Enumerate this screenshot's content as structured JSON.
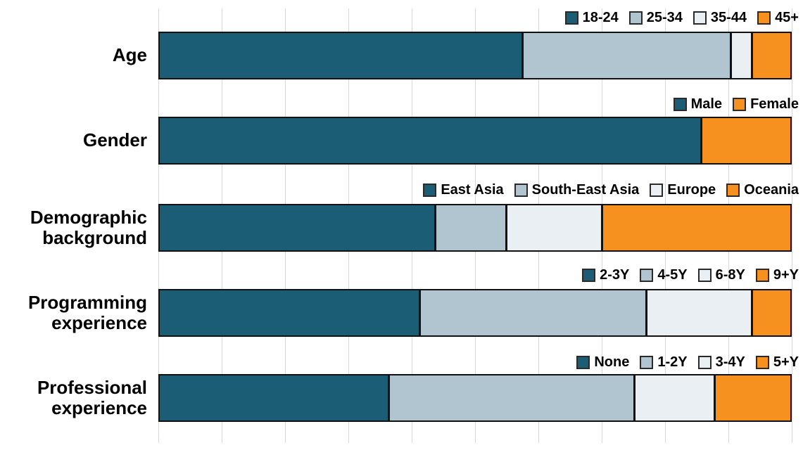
{
  "chart_data": {
    "type": "bar",
    "orientation": "horizontal",
    "stacked": true,
    "title": "",
    "xlabel": "",
    "ylabel": "",
    "units": "percent",
    "xlim": [
      0,
      100
    ],
    "grid": true,
    "grid_interval": 10,
    "legend_position": "above-each-bar-right-aligned",
    "palette": [
      "#1a5d74",
      "#b0c5d0",
      "#e9eff3",
      "#f6901e"
    ],
    "rows": [
      {
        "category": "Age",
        "segments": [
          {
            "label": "18-24",
            "value": 58,
            "color": "#1a5d74"
          },
          {
            "label": "25-34",
            "value": 33,
            "color": "#b0c5d0"
          },
          {
            "label": "35-44",
            "value": 3,
            "color": "#e9eff3"
          },
          {
            "label": "45+",
            "value": 6,
            "color": "#f6901e"
          }
        ]
      },
      {
        "category": "Gender",
        "segments": [
          {
            "label": "Male",
            "value": 86,
            "color": "#1a5d74"
          },
          {
            "label": "Female",
            "value": 14,
            "color": "#f6901e"
          }
        ]
      },
      {
        "category": "Demographic background",
        "segments": [
          {
            "label": "East Asia",
            "value": 44,
            "color": "#1a5d74"
          },
          {
            "label": "South-East Asia",
            "value": 11,
            "color": "#b0c5d0"
          },
          {
            "label": "Europe",
            "value": 15,
            "color": "#e9eff3"
          },
          {
            "label": "Oceania",
            "value": 30,
            "color": "#f6901e"
          }
        ]
      },
      {
        "category": "Programming experience",
        "segments": [
          {
            "label": "2-3Y",
            "value": 41.5,
            "color": "#1a5d74"
          },
          {
            "label": "4-5Y",
            "value": 36,
            "color": "#b0c5d0"
          },
          {
            "label": "6-8Y",
            "value": 16.5,
            "color": "#e9eff3"
          },
          {
            "label": "9+Y",
            "value": 6,
            "color": "#f6901e"
          }
        ]
      },
      {
        "category": "Professional experience",
        "segments": [
          {
            "label": "None",
            "value": 36.5,
            "color": "#1a5d74"
          },
          {
            "label": "1-2Y",
            "value": 39,
            "color": "#b0c5d0"
          },
          {
            "label": "3-4Y",
            "value": 12.5,
            "color": "#e9eff3"
          },
          {
            "label": "5+Y",
            "value": 12,
            "color": "#f6901e"
          }
        ]
      }
    ]
  },
  "colors": {
    "bar_border": "#111111",
    "gridline": "#d8d8d8",
    "legend_square_border": "#2a2a2a",
    "text": "#000000",
    "background": "#ffffff"
  }
}
